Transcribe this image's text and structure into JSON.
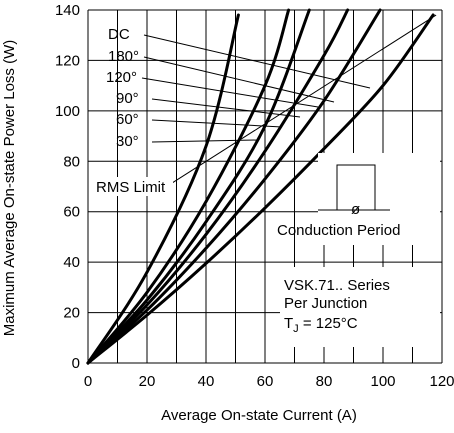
{
  "chart_data": {
    "type": "line",
    "xlabel": "Average On-state Current (A)",
    "ylabel": "Maximum Average On-state Power Loss (W)",
    "xlim": [
      0,
      120
    ],
    "ylim": [
      0,
      140
    ],
    "xticks": [
      0,
      20,
      40,
      60,
      80,
      100,
      120
    ],
    "yticks": [
      0,
      20,
      40,
      60,
      80,
      100,
      120,
      140
    ],
    "grid": true,
    "series": [
      {
        "name": "DC",
        "x": [
          0,
          20,
          40,
          60,
          80,
          100,
          117
        ],
        "y": [
          0,
          19,
          39.5,
          61.5,
          85,
          110,
          138
        ]
      },
      {
        "name": "180°",
        "x": [
          0,
          20,
          40,
          60,
          80,
          99
        ],
        "y": [
          0,
          21,
          45.5,
          73,
          104,
          140
        ]
      },
      {
        "name": "120°",
        "x": [
          0,
          20,
          40,
          60,
          80,
          88
        ],
        "y": [
          0,
          23,
          51,
          84,
          122,
          140
        ]
      },
      {
        "name": "90°",
        "x": [
          0,
          20,
          40,
          60,
          75
        ],
        "y": [
          0,
          25,
          56,
          94,
          140
        ]
      },
      {
        "name": "60°",
        "x": [
          0,
          20,
          40,
          60,
          68
        ],
        "y": [
          0,
          28,
          64,
          110,
          140
        ]
      },
      {
        "name": "30°",
        "x": [
          0,
          20,
          40,
          51
        ],
        "y": [
          0,
          36,
          86,
          138
        ]
      }
    ],
    "rms_limit": {
      "label": "RMS Limit",
      "x": [
        28,
        118
      ],
      "y": [
        71,
        138
      ]
    },
    "annotations": {
      "conduction_period": "Conduction Period",
      "phi": "ø",
      "series_note": "VSK.71.. Series",
      "junction_note": "Per Junction",
      "tj_prefix": "T",
      "tj_sub": "J",
      "tj_value": " = 125°C"
    }
  }
}
